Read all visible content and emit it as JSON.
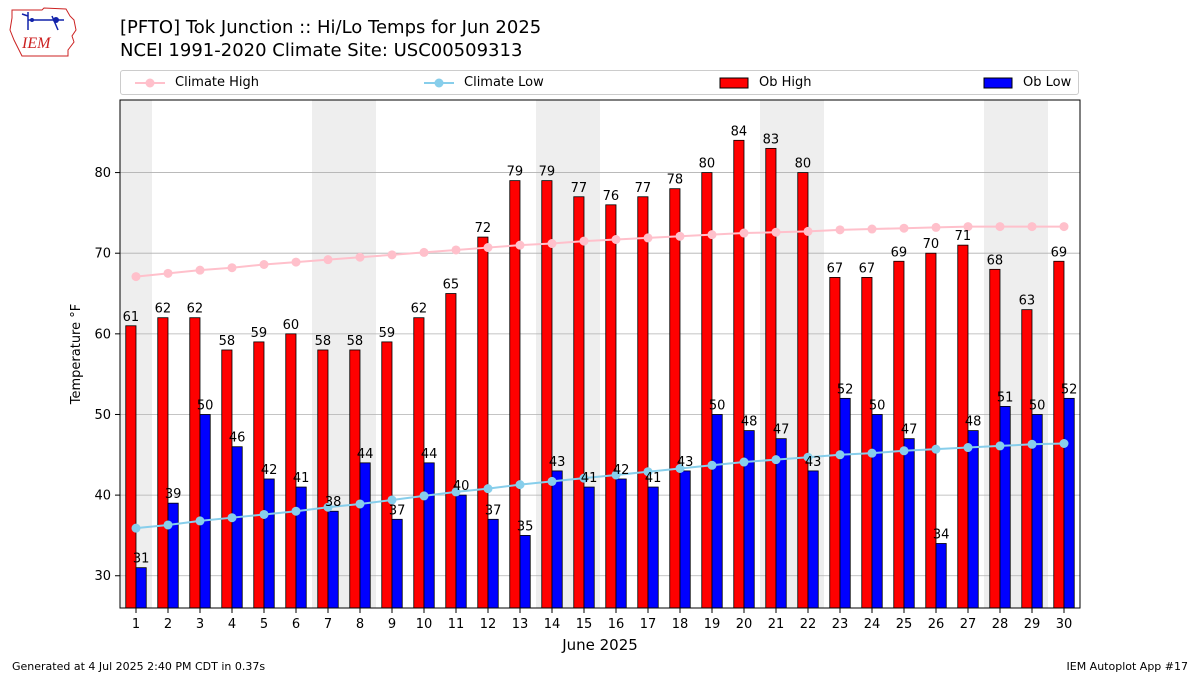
{
  "header": {
    "title": "[PFTO] Tok Junction :: Hi/Lo Temps for Jun 2025",
    "subtitle": "NCEI 1991-2020 Climate Site: USC00509313",
    "logo_text": "IEM"
  },
  "footer": {
    "generated": "Generated at 4 Jul 2025 2:40 PM CDT in 0.37s",
    "app": "IEM Autoplot App #17"
  },
  "colors": {
    "ob_high": "#ff0000",
    "ob_low": "#0000ff",
    "climate_high": "#ffc0cb",
    "climate_low": "#87ceeb",
    "weekend_shade": "#eeeeee",
    "grid": "#b0b0b0"
  },
  "chart_data": {
    "type": "bar",
    "xlabel": "June 2025",
    "ylabel": "Temperature $^\\circ$F",
    "ylim": [
      26,
      89
    ],
    "yticks": [
      30,
      40,
      50,
      60,
      70,
      80
    ],
    "grid": "horizontal",
    "legend_placement": "top",
    "categories": [
      "1",
      "2",
      "3",
      "4",
      "5",
      "6",
      "7",
      "8",
      "9",
      "10",
      "11",
      "12",
      "13",
      "14",
      "15",
      "16",
      "17",
      "18",
      "19",
      "20",
      "21",
      "22",
      "23",
      "24",
      "25",
      "26",
      "27",
      "28",
      "29",
      "30"
    ],
    "shaded_days": [
      1,
      7,
      8,
      14,
      15,
      21,
      22,
      28,
      29
    ],
    "series": [
      {
        "name": "Climate High",
        "kind": "line",
        "values": [
          67.1,
          67.5,
          67.9,
          68.2,
          68.6,
          68.9,
          69.2,
          69.5,
          69.8,
          70.1,
          70.4,
          70.7,
          71.0,
          71.2,
          71.5,
          71.7,
          71.9,
          72.1,
          72.3,
          72.5,
          72.6,
          72.7,
          72.9,
          73.0,
          73.1,
          73.2,
          73.3,
          73.3,
          73.3,
          73.3
        ]
      },
      {
        "name": "Climate Low",
        "kind": "line",
        "values": [
          35.9,
          36.3,
          36.8,
          37.2,
          37.6,
          38.0,
          38.5,
          38.9,
          39.4,
          39.9,
          40.4,
          40.8,
          41.3,
          41.7,
          42.1,
          42.5,
          42.9,
          43.3,
          43.7,
          44.1,
          44.4,
          44.7,
          45.0,
          45.2,
          45.5,
          45.7,
          45.9,
          46.1,
          46.3,
          46.4
        ]
      },
      {
        "name": "Ob High",
        "kind": "bar",
        "values": [
          61,
          62,
          62,
          58,
          59,
          60,
          58,
          58,
          59,
          62,
          65,
          72,
          79,
          79,
          77,
          76,
          77,
          78,
          80,
          84,
          83,
          80,
          67,
          67,
          69,
          70,
          71,
          68,
          63,
          69
        ]
      },
      {
        "name": "Ob Low",
        "kind": "bar",
        "values": [
          31,
          39,
          50,
          46,
          42,
          41,
          38,
          44,
          37,
          44,
          40,
          37,
          35,
          43,
          41,
          42,
          41,
          43,
          50,
          48,
          47,
          43,
          52,
          50,
          47,
          34,
          48,
          51,
          50,
          52
        ]
      }
    ]
  }
}
